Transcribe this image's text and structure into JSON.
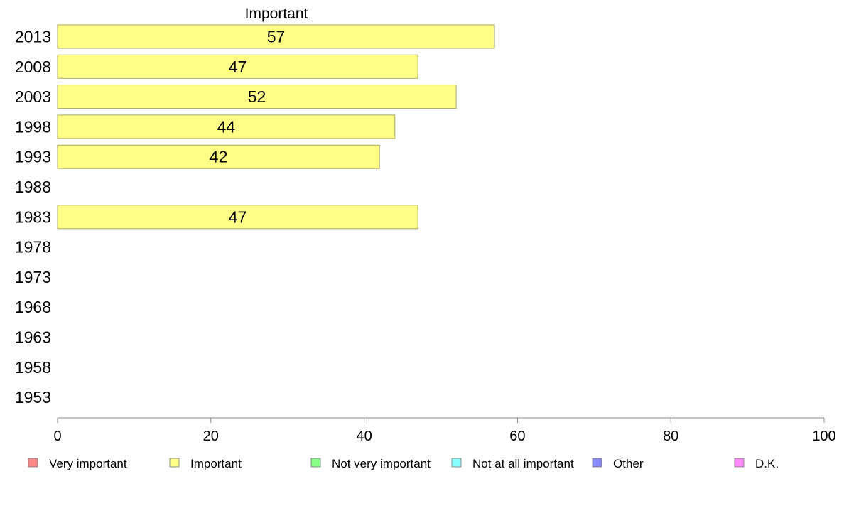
{
  "chart_data": {
    "type": "bar",
    "orientation": "horizontal",
    "title": "Important",
    "categories": [
      "2013",
      "2008",
      "2003",
      "1998",
      "1993",
      "1988",
      "1983",
      "1978",
      "1973",
      "1968",
      "1963",
      "1958",
      "1953"
    ],
    "series": [
      {
        "name": "Important",
        "color": "#ffff88",
        "values": [
          57,
          47,
          52,
          44,
          42,
          null,
          47,
          null,
          null,
          null,
          null,
          null,
          null
        ]
      }
    ],
    "xlim": [
      0,
      100
    ],
    "xticks": [
      0,
      20,
      40,
      60,
      80,
      100
    ],
    "grid": false,
    "legend": {
      "placement": "bottom",
      "entries": [
        {
          "label": "Very important",
          "color": "#ff8888"
        },
        {
          "label": "Important",
          "color": "#ffff88"
        },
        {
          "label": "Not very important",
          "color": "#88ff88"
        },
        {
          "label": "Not at all important",
          "color": "#88ffff"
        },
        {
          "label": "Other",
          "color": "#8888ff"
        },
        {
          "label": "D.K.",
          "color": "#ff88ff"
        }
      ]
    }
  }
}
